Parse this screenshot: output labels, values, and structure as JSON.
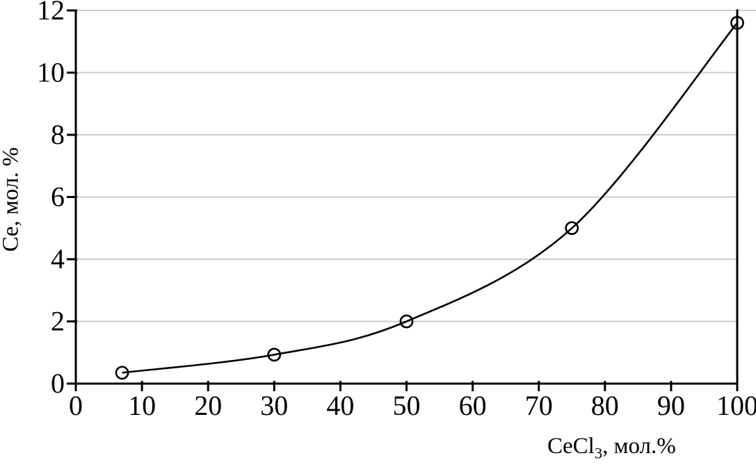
{
  "chart_data": {
    "type": "line",
    "title": "",
    "ylabel": "Ce, мол. %",
    "xlabel": "CeCl3, мол.%",
    "xlabel_parts": {
      "prefix": "CeCl",
      "sub": "3",
      "suffix": ", мол.%"
    },
    "xlim": [
      0,
      100
    ],
    "ylim": [
      0,
      12
    ],
    "x_ticks": [
      0,
      10,
      20,
      30,
      40,
      50,
      60,
      70,
      80,
      90,
      100
    ],
    "y_ticks": [
      0,
      2,
      4,
      6,
      8,
      10,
      12
    ],
    "grid": "horizontal",
    "legend": "none",
    "series": [
      {
        "marker": "open-circle",
        "x": [
          7,
          30,
          50,
          75,
          100
        ],
        "y": [
          0.35,
          0.93,
          2.0,
          5.0,
          11.6
        ]
      }
    ],
    "colors": {
      "line": "#000000",
      "axis": "#000000",
      "grid": "#c6c6c6",
      "text": "#000000"
    }
  }
}
